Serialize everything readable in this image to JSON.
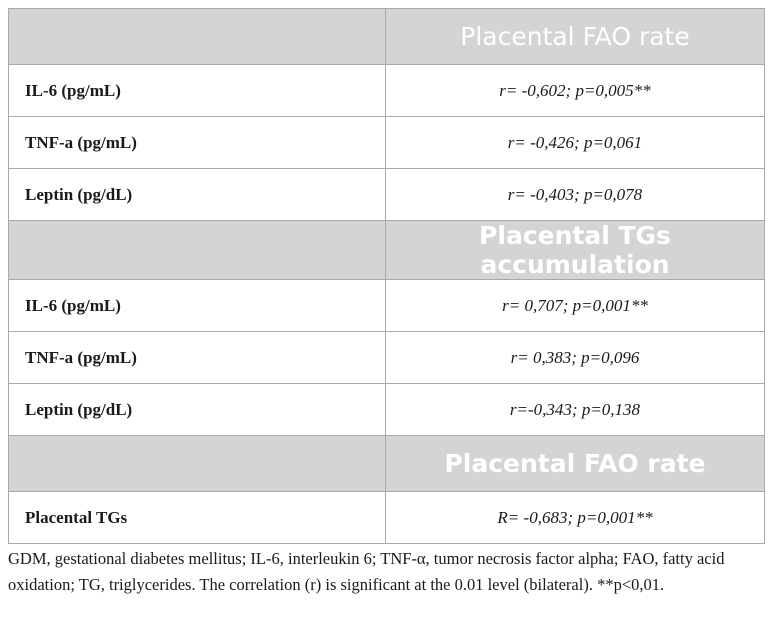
{
  "table": {
    "sections": [
      {
        "header": "Placental FAO rate",
        "header_style": "light",
        "rows": [
          {
            "label": "IL-6 (pg/mL)",
            "value": "r= -0,602; p=0,005**"
          },
          {
            "label": "TNF-a (pg/mL)",
            "value": "r= -0,426; p=0,061"
          },
          {
            "label": "Leptin (pg/dL)",
            "value": "r= -0,403; p=0,078"
          }
        ]
      },
      {
        "header": "Placental TGs accumulation",
        "header_style": "bold",
        "rows": [
          {
            "label": "IL-6 (pg/mL)",
            "value": "r= 0,707; p=0,001**"
          },
          {
            "label": "TNF-a (pg/mL)",
            "value": "r= 0,383; p=0,096"
          },
          {
            "label": "Leptin (pg/dL)",
            "value": "r=-0,343; p=0,138"
          }
        ]
      },
      {
        "header": "Placental FAO rate",
        "header_style": "bold",
        "rows": [
          {
            "label": "Placental TGs",
            "value": "R= -0,683; p=0,001**"
          }
        ]
      }
    ]
  },
  "footnote": "GDM, gestational diabetes mellitus; IL-6, interleukin 6; TNF-α, tumor necrosis factor alpha; FAO, fatty acid oxidation; TG, triglycerides. The correlation (r) is significant at the 0.01 level (bilateral). **p<0,01.",
  "colors": {
    "header_bg": "#d4d4d4",
    "header_text": "#ffffff",
    "border": "#a9a9a9"
  }
}
